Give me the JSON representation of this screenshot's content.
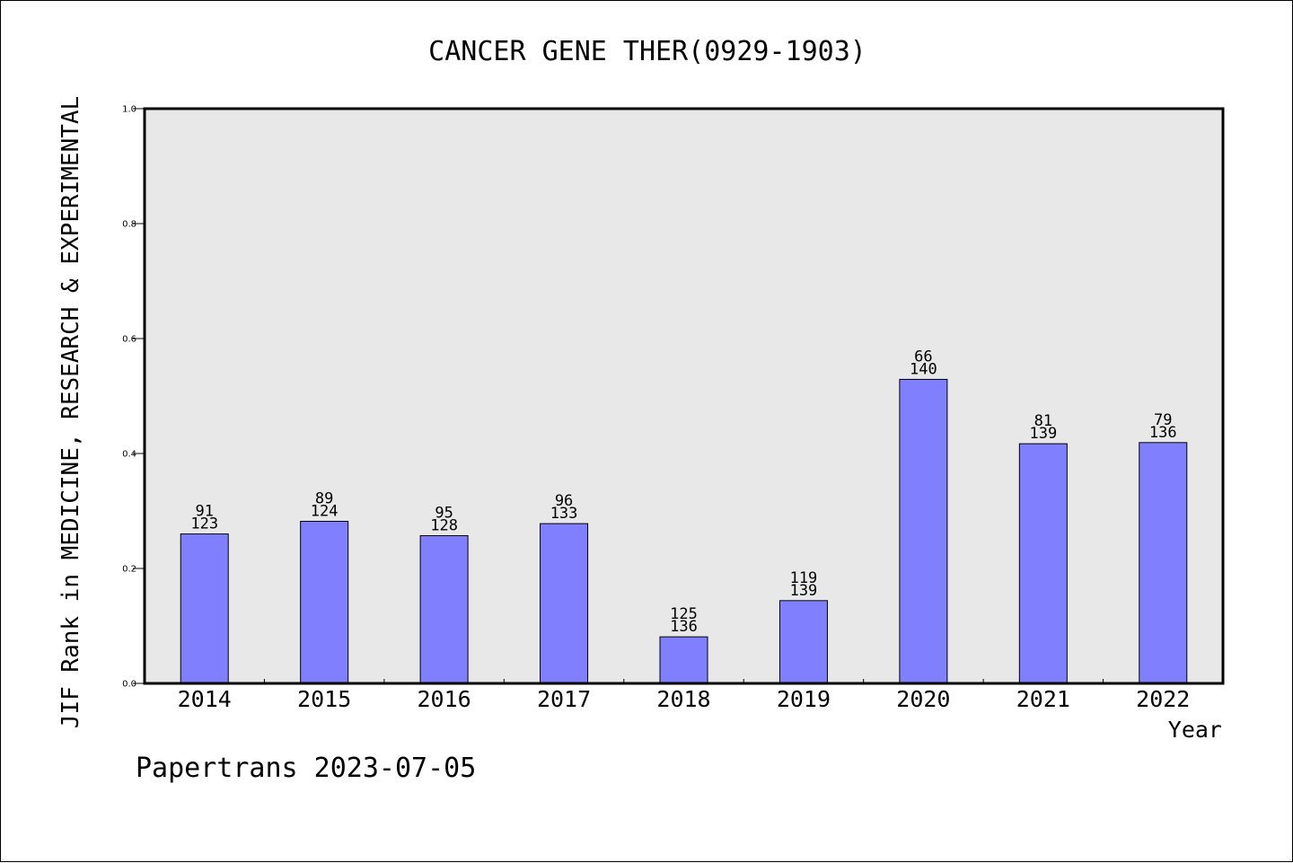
{
  "chart_data": {
    "type": "bar",
    "title": "CANCER GENE THER(0929-1903)",
    "xlabel": "Year",
    "ylabel": "JIF Rank in MEDICINE, RESEARCH & EXPERIMENTAL",
    "ylim": [
      0,
      1.0
    ],
    "yticks": [
      "0.0",
      "0.2",
      "0.4",
      "0.6",
      "0.8",
      "1.0"
    ],
    "categories": [
      "2014",
      "2015",
      "2016",
      "2017",
      "2018",
      "2019",
      "2020",
      "2021",
      "2022"
    ],
    "values": [
      0.26,
      0.282,
      0.257,
      0.278,
      0.081,
      0.144,
      0.529,
      0.417,
      0.419
    ],
    "labels_top": [
      "91",
      "89",
      "95",
      "96",
      "125",
      "119",
      "66",
      "81",
      "79"
    ],
    "labels_bottom": [
      "123",
      "124",
      "128",
      "133",
      "136",
      "139",
      "140",
      "139",
      "136"
    ],
    "grid": false,
    "colors": {
      "bar_fill": "#8080ff",
      "bar_stroke": "#000000",
      "plot_bg": "#e8e8e8"
    }
  },
  "footer": {
    "watermark": "Papertrans 2023-07-05"
  }
}
